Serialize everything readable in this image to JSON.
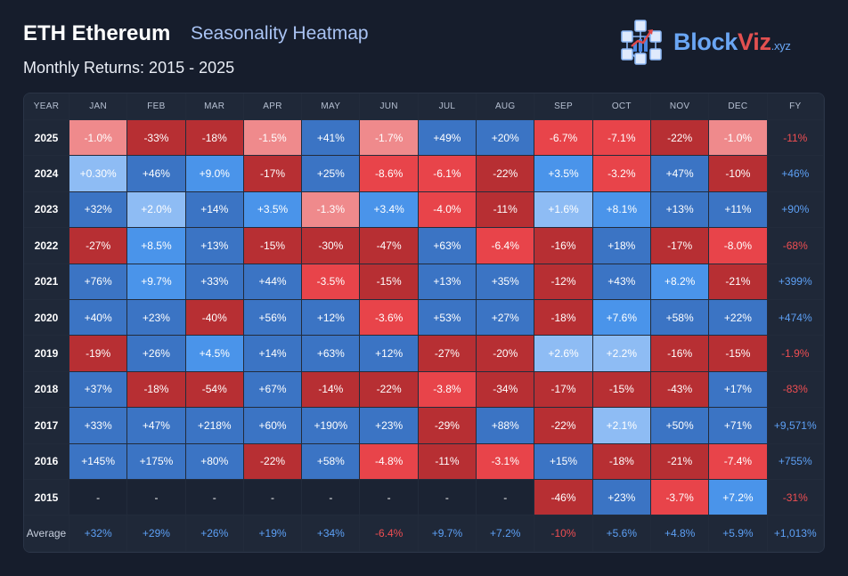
{
  "header": {
    "title_main": "ETH Ethereum",
    "title_sub": "Seasonality Heatmap",
    "subtitle": "Monthly Returns: 2015 - 2025"
  },
  "logo": {
    "brand_part1": "Block",
    "brand_part2": "Viz",
    "brand_suffix": ".xyz"
  },
  "colors": {
    "background": "#161d2c",
    "pos_strong": "#3b74c4",
    "pos_mid": "#4a94ea",
    "pos_light": "#8ebcf4",
    "neg_strong": "#b72f33",
    "neg_mid": "#e8444a",
    "neg_light": "#ef8a8c",
    "pos_text": "#5da0f5",
    "neg_text": "#ef4e52"
  },
  "chart_data": {
    "type": "heatmap",
    "title": "Seasonality Heatmap",
    "subtitle": "Monthly Returns: 2015 - 2025",
    "year_header": "YEAR",
    "fy_header": "FY",
    "average_label": "Average",
    "columns": [
      "JAN",
      "FEB",
      "MAR",
      "APR",
      "MAY",
      "JUN",
      "JUL",
      "AUG",
      "SEP",
      "OCT",
      "NOV",
      "DEC"
    ],
    "rows": [
      {
        "year": "2025",
        "values": [
          "-1.0%",
          "-33%",
          "-18%",
          "-1.5%",
          "+41%",
          "-1.7%",
          "+49%",
          "+20%",
          "-6.7%",
          "-7.1%",
          "-22%",
          "-1.0%"
        ],
        "fy": "-11%"
      },
      {
        "year": "2024",
        "values": [
          "+0.30%",
          "+46%",
          "+9.0%",
          "-17%",
          "+25%",
          "-8.6%",
          "-6.1%",
          "-22%",
          "+3.5%",
          "-3.2%",
          "+47%",
          "-10%"
        ],
        "fy": "+46%"
      },
      {
        "year": "2023",
        "values": [
          "+32%",
          "+2.0%",
          "+14%",
          "+3.5%",
          "-1.3%",
          "+3.4%",
          "-4.0%",
          "-11%",
          "+1.6%",
          "+8.1%",
          "+13%",
          "+11%"
        ],
        "fy": "+90%"
      },
      {
        "year": "2022",
        "values": [
          "-27%",
          "+8.5%",
          "+13%",
          "-15%",
          "-30%",
          "-47%",
          "+63%",
          "-6.4%",
          "-16%",
          "+18%",
          "-17%",
          "-8.0%"
        ],
        "fy": "-68%"
      },
      {
        "year": "2021",
        "values": [
          "+76%",
          "+9.7%",
          "+33%",
          "+44%",
          "-3.5%",
          "-15%",
          "+13%",
          "+35%",
          "-12%",
          "+43%",
          "+8.2%",
          "-21%"
        ],
        "fy": "+399%"
      },
      {
        "year": "2020",
        "values": [
          "+40%",
          "+23%",
          "-40%",
          "+56%",
          "+12%",
          "-3.6%",
          "+53%",
          "+27%",
          "-18%",
          "+7.6%",
          "+58%",
          "+22%"
        ],
        "fy": "+474%"
      },
      {
        "year": "2019",
        "values": [
          "-19%",
          "+26%",
          "+4.5%",
          "+14%",
          "+63%",
          "+12%",
          "-27%",
          "-20%",
          "+2.6%",
          "+2.2%",
          "-16%",
          "-15%"
        ],
        "fy": "-1.9%"
      },
      {
        "year": "2018",
        "values": [
          "+37%",
          "-18%",
          "-54%",
          "+67%",
          "-14%",
          "-22%",
          "-3.8%",
          "-34%",
          "-17%",
          "-15%",
          "-43%",
          "+17%"
        ],
        "fy": "-83%"
      },
      {
        "year": "2017",
        "values": [
          "+33%",
          "+47%",
          "+218%",
          "+60%",
          "+190%",
          "+23%",
          "-29%",
          "+88%",
          "-22%",
          "+2.1%",
          "+50%",
          "+71%"
        ],
        "fy": "+9,571%"
      },
      {
        "year": "2016",
        "values": [
          "+145%",
          "+175%",
          "+80%",
          "-22%",
          "+58%",
          "-4.8%",
          "-11%",
          "-3.1%",
          "+15%",
          "-18%",
          "-21%",
          "-7.4%"
        ],
        "fy": "+755%"
      },
      {
        "year": "2015",
        "values": [
          "-",
          "-",
          "-",
          "-",
          "-",
          "-",
          "-",
          "-",
          "-46%",
          "+23%",
          "-3.7%",
          "+7.2%"
        ],
        "fy": "-31%"
      }
    ],
    "average": [
      "+32%",
      "+29%",
      "+26%",
      "+19%",
      "+34%",
      "-6.4%",
      "+9.7%",
      "+7.2%",
      "-10%",
      "+5.6%",
      "+4.8%",
      "+5.9%"
    ],
    "average_fy": "+1,013%"
  }
}
